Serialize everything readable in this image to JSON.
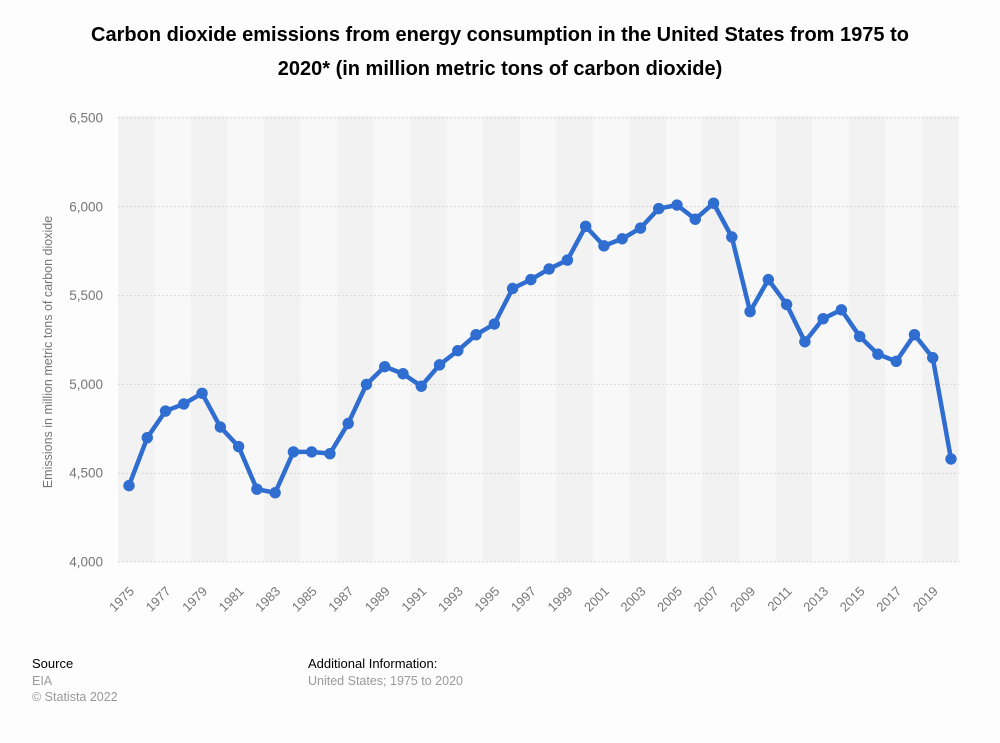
{
  "header": {
    "title_line1": "Carbon dioxide emissions from energy consumption in the United States from 1975 to",
    "title_line2": "2020* (in million metric tons of carbon dioxide)"
  },
  "footer": {
    "source_label": "Source",
    "source_value": "EIA",
    "copyright": "© Statista 2022",
    "additional_info_label": "Additional Information:",
    "additional_info_value": "United States; 1975 to 2020"
  },
  "colors": {
    "line": "#2f6dd0",
    "point": "#2f6dd0",
    "axis_text": "#767676",
    "gridline": "#c9c9c9",
    "band_dark": "#f2f2f2",
    "band_light": "#f8f8f8",
    "title_text": "#000000",
    "footer_muted": "#9a9a9a"
  },
  "chart_data": {
    "type": "line",
    "title": "Carbon dioxide emissions from energy consumption in the United States from 1975 to 2020* (in million metric tons of carbon dioxide)",
    "xlabel": "",
    "ylabel": "Emissions in million metric tons of carbon dioxide",
    "x": [
      1975,
      1976,
      1977,
      1978,
      1979,
      1980,
      1981,
      1982,
      1983,
      1984,
      1985,
      1986,
      1987,
      1988,
      1989,
      1990,
      1991,
      1992,
      1993,
      1994,
      1995,
      1996,
      1997,
      1998,
      1999,
      2000,
      2001,
      2002,
      2003,
      2004,
      2005,
      2006,
      2007,
      2008,
      2009,
      2010,
      2011,
      2012,
      2013,
      2014,
      2015,
      2016,
      2017,
      2018,
      2019,
      2020
    ],
    "values": [
      4430,
      4700,
      4850,
      4890,
      4950,
      4760,
      4650,
      4410,
      4390,
      4620,
      4620,
      4610,
      4780,
      5000,
      5100,
      5060,
      4990,
      5110,
      5190,
      5280,
      5340,
      5540,
      5590,
      5650,
      5700,
      5890,
      5780,
      5820,
      5880,
      5990,
      6010,
      5930,
      6020,
      5830,
      5410,
      5590,
      5450,
      5240,
      5370,
      5420,
      5270,
      5170,
      5130,
      5280,
      5150,
      4580
    ],
    "ylim": [
      4000,
      6500
    ],
    "ytick_step": 500,
    "ytick_labels": [
      "4,000",
      "4,500",
      "5,000",
      "5,500",
      "6,000",
      "6,500"
    ],
    "xtick_labels": [
      "1975",
      "1977",
      "1979",
      "1981",
      "1983",
      "1985",
      "1987",
      "1989",
      "1991",
      "1993",
      "1995",
      "1997",
      "1999",
      "2001",
      "2003",
      "2005",
      "2007",
      "2009",
      "2011",
      "2013",
      "2015",
      "2017",
      "2019"
    ],
    "xtick_every": 2,
    "grid": "horizontal-dotted",
    "legend": "none",
    "marker": "circle"
  }
}
